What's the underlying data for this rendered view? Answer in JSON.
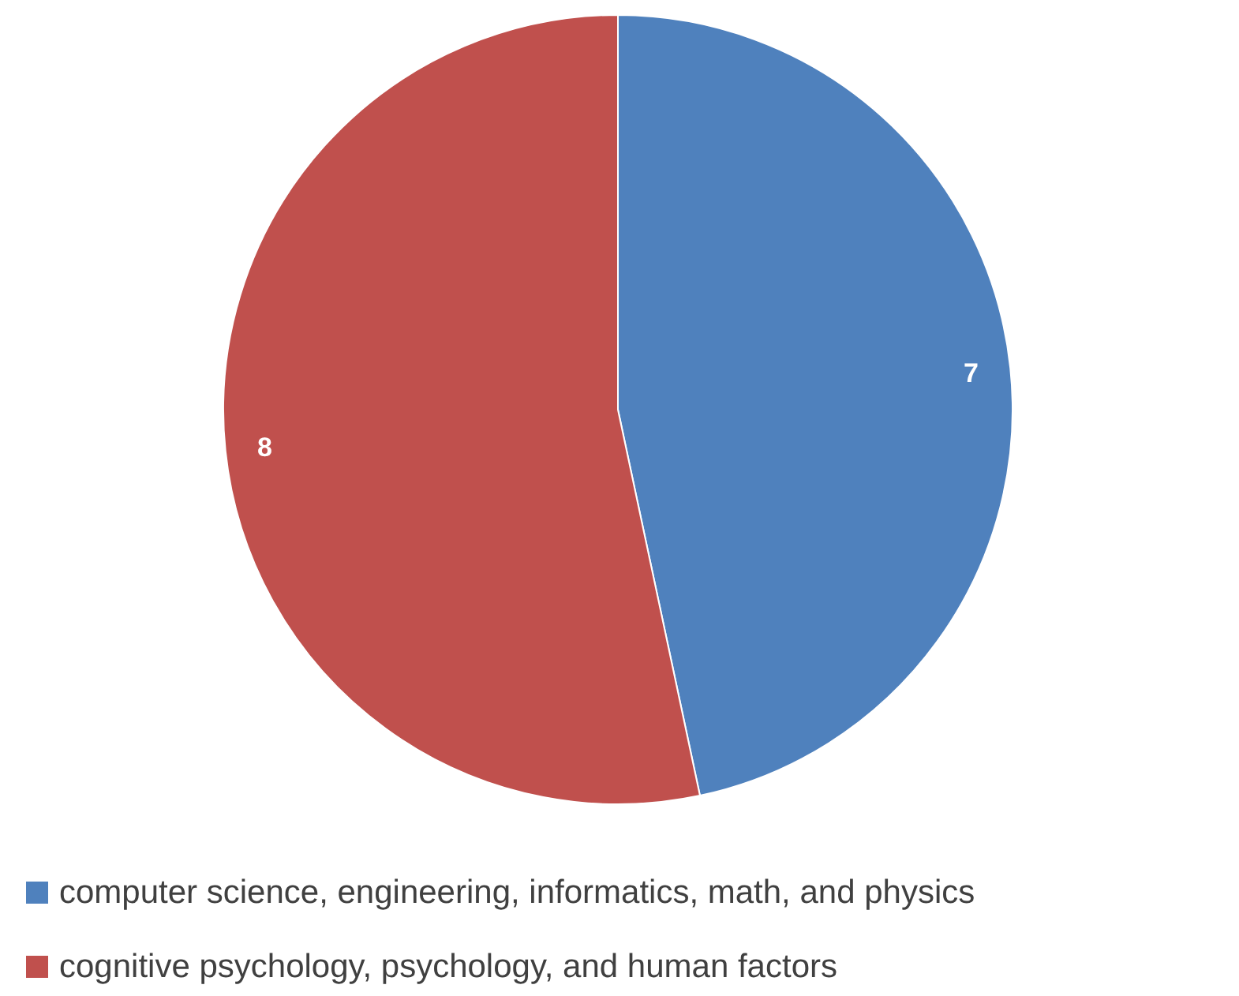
{
  "chart_data": {
    "type": "pie",
    "categories": [
      "computer science, engineering, informatics, math, and physics",
      "cognitive psychology, psychology, and human factors"
    ],
    "values": [
      7,
      8
    ],
    "colors": [
      "#4f81bd",
      "#c0504d"
    ],
    "data_labels": true,
    "legend": "bottom"
  }
}
